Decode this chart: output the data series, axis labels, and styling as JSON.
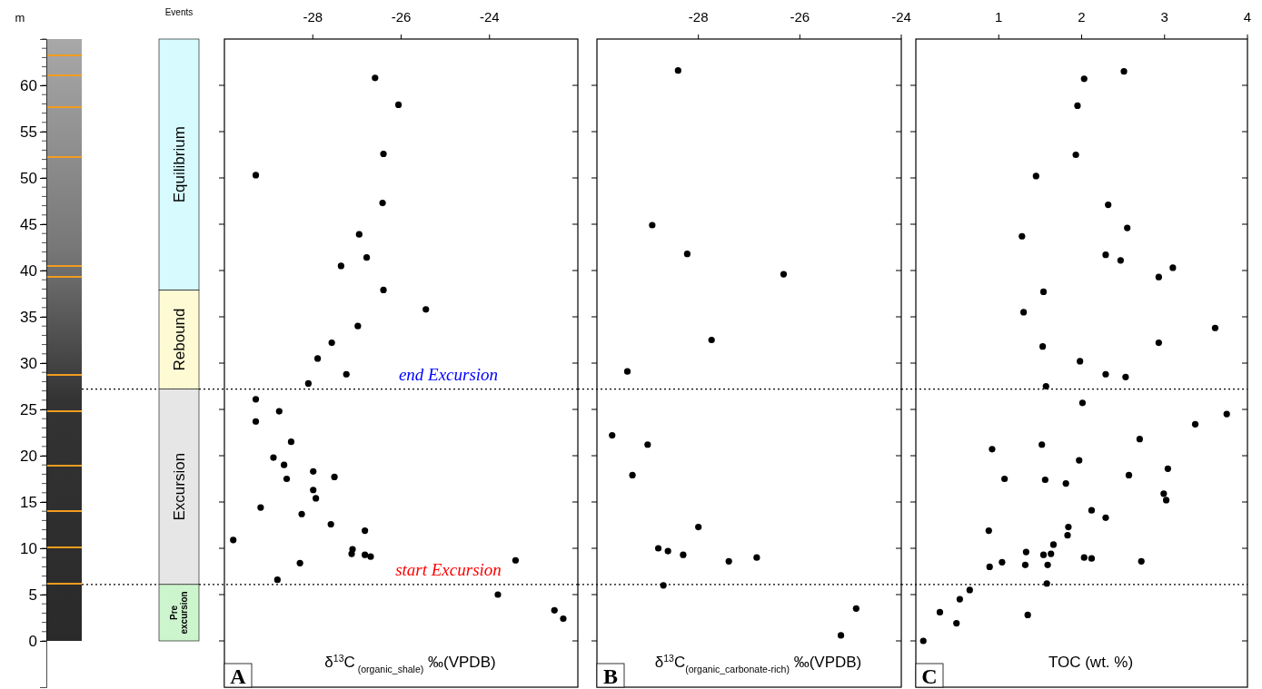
{
  "chart_data": [
    {
      "type": "bar",
      "title": "Events",
      "ylabel": "m",
      "categories": [
        null
      ],
      "stacked": true,
      "ylim": [
        -5,
        65
      ],
      "yticks": [
        0,
        5,
        10,
        15,
        20,
        25,
        30,
        35,
        40,
        45,
        50,
        55,
        60
      ],
      "tick_labels": "y",
      "series": [
        {
          "name": "Pre excursion",
          "color": "#cdf5cd",
          "values": [
            6.1
          ]
        },
        {
          "name": "Excursion",
          "color": "#e6e6e6",
          "values": [
            21.1
          ]
        },
        {
          "name": "Rebound",
          "color": "#fefbd4",
          "values": [
            10.7
          ]
        },
        {
          "name": "Equilibrium",
          "color": "#d6fafd",
          "values": [
            27.1
          ]
        }
      ],
      "ref_lines": [
        {
          "axis": "y",
          "value": 27.2,
          "line_style": "dotted"
        },
        {
          "axis": "y",
          "value": 6.1,
          "line_style": "dotted"
        }
      ]
    },
    {
      "type": "scatter",
      "xlabel": "δ$^{13}$C$_{ (organic_shale)}$ ‰(VPDB)",
      "xlim": [
        -30,
        -22
      ],
      "xticks": [
        -28,
        -26,
        -24
      ],
      "ylim": [
        -5,
        65
      ],
      "yticks": [
        0,
        5,
        10,
        15,
        20,
        25,
        30,
        35,
        40,
        45,
        50,
        55,
        60
      ],
      "tick_labels": "x",
      "marker": "circle",
      "color": "#000000",
      "x": [
        -26.59,
        -26.06,
        -26.4,
        -29.29,
        -26.42,
        -26.95,
        -26.78,
        -27.36,
        -26.4,
        -25.44,
        -26.98,
        -27.57,
        -27.89,
        -27.24,
        -28.1,
        -29.29,
        -28.76,
        -29.29,
        -28.49,
        -28.89,
        -28.65,
        -27.99,
        -27.51,
        -28.59,
        -27.99,
        -27.93,
        -29.18,
        -28.25,
        -27.59,
        -26.82,
        -29.8,
        -27.1,
        -27.12,
        -26.82,
        -26.69,
        -28.29,
        -23.41,
        -28.8,
        -23.81,
        -22.53,
        -22.33
      ],
      "values": [
        60.8,
        57.9,
        52.6,
        50.3,
        47.3,
        43.9,
        41.4,
        40.5,
        37.9,
        35.8,
        34.0,
        32.2,
        30.5,
        28.8,
        27.8,
        26.1,
        24.8,
        23.7,
        21.5,
        19.8,
        19.0,
        18.3,
        17.7,
        17.5,
        16.3,
        15.4,
        14.4,
        13.7,
        12.6,
        11.9,
        10.9,
        9.9,
        9.4,
        9.3,
        9.1,
        8.4,
        8.7,
        6.6,
        5.0,
        3.3,
        2.4
      ],
      "ref_lines": [
        {
          "axis": "y",
          "value": 27.2,
          "label": "end Excursion",
          "line_style": "dotted"
        },
        {
          "axis": "y",
          "value": 6.1,
          "label": "start Excursion",
          "line_style": "dotted"
        }
      ],
      "annotations": [
        "A"
      ]
    },
    {
      "type": "scatter",
      "xlabel": "δ$^{13}$C$_{(organic_carbonate-rich)}$ ‰(VPDB)",
      "xlim": [
        -30,
        -24
      ],
      "xticks": [
        -28,
        -26,
        -24
      ],
      "ylim": [
        -5,
        65
      ],
      "yticks": [
        0,
        5,
        10,
        15,
        20,
        25,
        30,
        35,
        40,
        45,
        50,
        55,
        60
      ],
      "tick_labels": "x",
      "marker": "circle",
      "color": "#000000",
      "x": [
        -28.4,
        -28.91,
        -28.22,
        -26.32,
        -27.74,
        -29.4,
        -29.7,
        -29.0,
        -29.3,
        -28.0,
        -28.79,
        -28.6,
        -28.3,
        -27.4,
        -26.85,
        -28.69,
        -24.89,
        -25.19
      ],
      "values": [
        61.6,
        44.9,
        41.8,
        39.6,
        32.5,
        29.1,
        22.2,
        21.2,
        17.9,
        12.3,
        10.0,
        9.7,
        9.3,
        8.6,
        9.0,
        6.0,
        3.5,
        0.6
      ],
      "ref_lines": [
        {
          "axis": "y",
          "value": 27.2,
          "line_style": "dotted"
        },
        {
          "axis": "y",
          "value": 6.1,
          "line_style": "dotted"
        }
      ],
      "annotations": [
        "B"
      ]
    },
    {
      "type": "scatter",
      "xlabel": "TOC (wt. %)",
      "xlim": [
        0,
        4
      ],
      "xticks": [
        1,
        2,
        3,
        4
      ],
      "ylim": [
        -5,
        65
      ],
      "yticks": [
        0,
        5,
        10,
        15,
        20,
        25,
        30,
        35,
        40,
        45,
        50,
        55,
        60
      ],
      "tick_labels": "x",
      "marker": "circle",
      "color": "#000000",
      "x": [
        2.51,
        2.03,
        1.95,
        1.93,
        1.45,
        2.32,
        2.55,
        1.28,
        2.29,
        2.47,
        2.93,
        3.1,
        1.54,
        1.3,
        3.61,
        2.93,
        1.53,
        1.98,
        2.29,
        2.53,
        1.57,
        2.01,
        3.75,
        3.37,
        2.7,
        0.92,
        1.52,
        1.97,
        3.04,
        2.57,
        1.07,
        1.56,
        1.81,
        2.99,
        3.02,
        2.12,
        2.29,
        0.88,
        1.84,
        1.83,
        1.66,
        1.33,
        1.54,
        1.63,
        2.03,
        2.12,
        2.72,
        1.04,
        0.89,
        1.32,
        1.59,
        1.58,
        0.65,
        0.53,
        0.29,
        1.35,
        0.49,
        0.09
      ],
      "values": [
        61.5,
        60.7,
        57.8,
        52.5,
        50.2,
        47.1,
        44.6,
        43.7,
        41.7,
        41.1,
        39.3,
        40.3,
        37.7,
        35.5,
        33.8,
        32.2,
        31.8,
        30.2,
        28.8,
        28.5,
        27.5,
        25.7,
        24.5,
        23.4,
        21.8,
        20.7,
        21.2,
        19.5,
        18.6,
        17.9,
        17.5,
        17.4,
        17.0,
        15.9,
        15.2,
        14.1,
        13.3,
        11.9,
        12.3,
        11.4,
        10.4,
        9.6,
        9.3,
        9.4,
        9.0,
        8.9,
        8.6,
        8.5,
        8.0,
        8.2,
        8.2,
        6.2,
        5.5,
        4.5,
        3.1,
        2.8,
        1.9,
        0.0
      ],
      "ref_lines": [
        {
          "axis": "y",
          "value": 27.2,
          "line_style": "dotted"
        },
        {
          "axis": "y",
          "value": 6.1,
          "line_style": "dotted"
        }
      ],
      "annotations": [
        "C"
      ]
    }
  ]
}
